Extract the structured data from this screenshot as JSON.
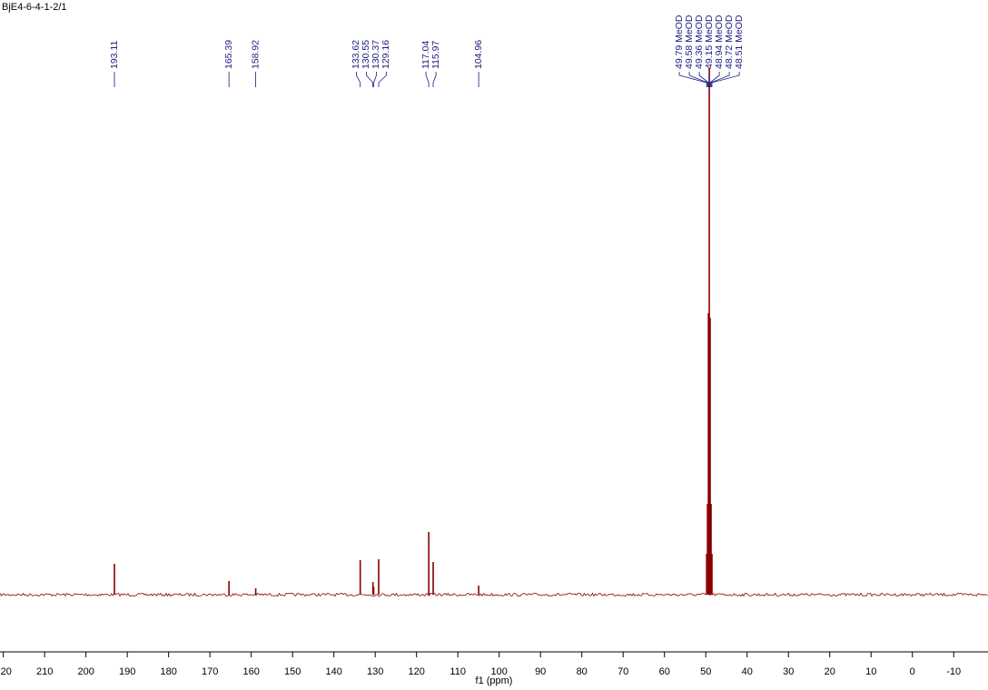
{
  "chart_data": {
    "type": "nmr",
    "title": "BjE4-6-4-1-2/1",
    "x_label": "f1 (ppm)",
    "x": [
      193.11,
      165.39,
      158.92,
      133.62,
      130.55,
      130.37,
      129.16,
      117.04,
      115.97,
      104.96,
      49.79,
      49.58,
      49.36,
      49.15,
      48.94,
      48.72,
      48.51
    ],
    "values": [
      34,
      15,
      7,
      38,
      14,
      9,
      39,
      69,
      36,
      10,
      45,
      100,
      310,
      580,
      305,
      100,
      45
    ],
    "peak_labels": [
      "193.11",
      "165.39",
      "158.92",
      "133.62",
      "130.55",
      "130.37",
      "129.16",
      "117.04",
      "115.97",
      "104.96",
      "49.79 MeOD",
      "49.58 MeOD",
      "49.36 MeOD",
      "49.15 MeOD",
      "48.94 MeOD",
      "48.72 MeOD",
      "48.51 MeOD"
    ],
    "xlim": [
      220.8,
      -18.3
    ],
    "ylim": [
      -63,
      655
    ],
    "xticks": [
      220,
      210,
      200,
      190,
      180,
      170,
      160,
      150,
      140,
      130,
      120,
      110,
      100,
      90,
      80,
      70,
      60,
      50,
      40,
      30,
      20,
      10,
      0,
      -10
    ],
    "color": "#8b0000",
    "label_color": "#1a1a80"
  }
}
